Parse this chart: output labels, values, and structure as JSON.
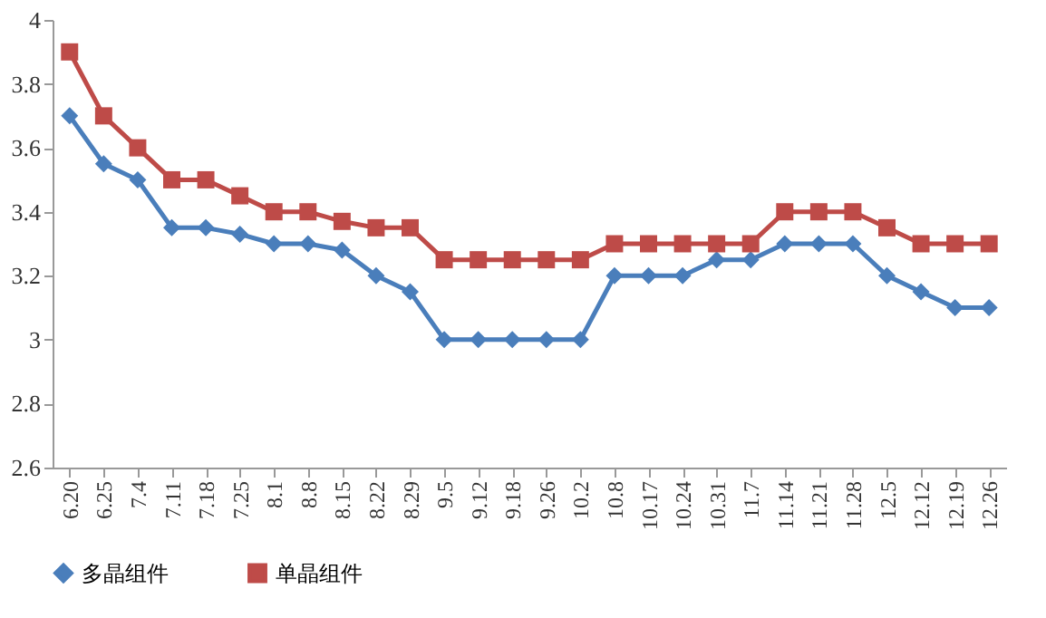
{
  "chart_data": {
    "type": "line",
    "categories": [
      "6.20",
      "6.25",
      "7.4",
      "7.11",
      "7.18",
      "7.25",
      "8.1",
      "8.8",
      "8.15",
      "8.22",
      "8.29",
      "9.5",
      "9.12",
      "9.18",
      "9.26",
      "10.2",
      "10.8",
      "10.17",
      "10.24",
      "10.31",
      "11.7",
      "11.14",
      "11.21",
      "11.28",
      "12.5",
      "12.12",
      "12.19",
      "12.26"
    ],
    "series": [
      {
        "name": "多晶组件",
        "color": "#4a7ebb",
        "marker": "diamond",
        "values": [
          3.7,
          3.55,
          3.5,
          3.35,
          3.35,
          3.33,
          3.3,
          3.3,
          3.28,
          3.2,
          3.15,
          3.0,
          3.0,
          3.0,
          3.0,
          3.0,
          3.2,
          3.2,
          3.2,
          3.25,
          3.25,
          3.3,
          3.3,
          3.3,
          3.2,
          3.15,
          3.1,
          3.1
        ]
      },
      {
        "name": "单晶组件",
        "color": "#be4b48",
        "marker": "square",
        "values": [
          3.9,
          3.7,
          3.6,
          3.5,
          3.5,
          3.45,
          3.4,
          3.4,
          3.37,
          3.35,
          3.35,
          3.25,
          3.25,
          3.25,
          3.25,
          3.25,
          3.3,
          3.3,
          3.3,
          3.3,
          3.3,
          3.4,
          3.4,
          3.4,
          3.35,
          3.3,
          3.3,
          3.3
        ]
      }
    ],
    "ylim": [
      2.6,
      4
    ],
    "yticks": [
      2.6,
      2.8,
      3,
      3.2,
      3.4,
      3.6,
      3.8,
      4
    ],
    "grid": false,
    "legend": "bottom",
    "line_style": "solid"
  }
}
